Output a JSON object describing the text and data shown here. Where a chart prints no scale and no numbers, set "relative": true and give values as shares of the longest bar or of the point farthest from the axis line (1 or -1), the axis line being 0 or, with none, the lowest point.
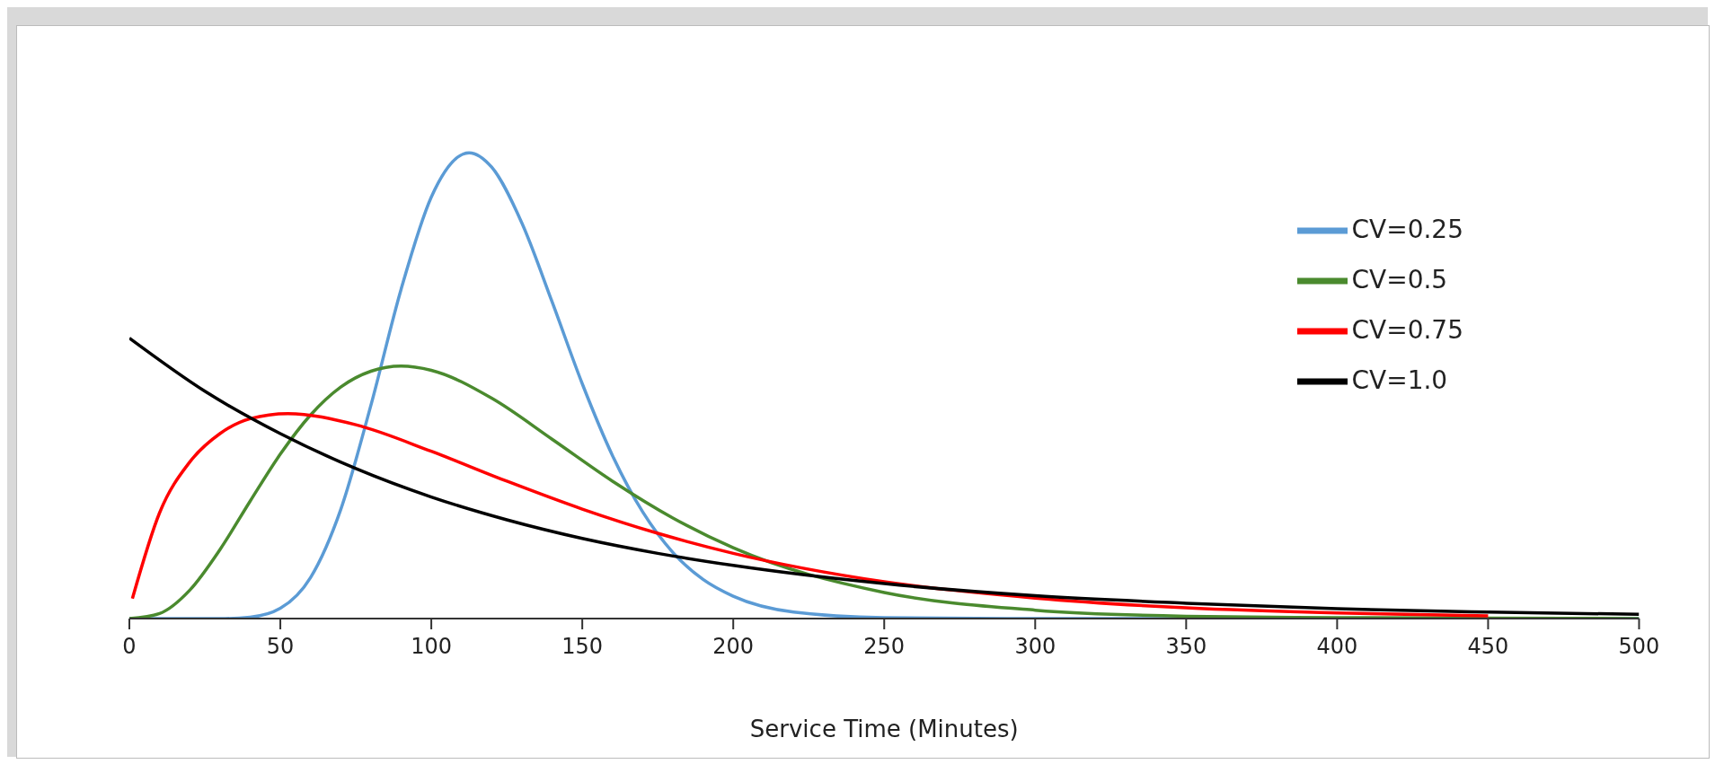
{
  "chart_data": {
    "type": "line",
    "xlabel": "Service Time (Minutes)",
    "relative": true,
    "xlim": [
      0,
      500
    ],
    "xticks": [
      0,
      50,
      100,
      150,
      200,
      250,
      300,
      350,
      400,
      450,
      500
    ],
    "grid": false,
    "legend": "top right",
    "marker": "none",
    "line_style": "solid",
    "series": [
      {
        "name": "CV=0.25",
        "color": "#5b9bd5",
        "x": [
          0,
          30,
          40,
          50,
          60,
          70,
          80,
          90,
          100,
          112.5,
          120,
          130,
          140,
          150,
          160,
          170,
          180,
          190,
          200,
          220,
          250,
          300,
          400,
          500
        ],
        "values": [
          0,
          0,
          0.003,
          0.022,
          0.088,
          0.234,
          0.458,
          0.707,
          0.905,
          1,
          0.969,
          0.849,
          0.68,
          0.504,
          0.35,
          0.229,
          0.142,
          0.084,
          0.048,
          0.014,
          0.002,
          0,
          0,
          0
        ]
      },
      {
        "name": "CV=0.5",
        "color": "#4a8a2e",
        "x": [
          0,
          10,
          20,
          30,
          40,
          50,
          60,
          70,
          80,
          90,
          100,
          120,
          140,
          160,
          180,
          200,
          250,
          300,
          350,
          400,
          450,
          500
        ],
        "values": [
          0,
          0.011,
          0.061,
          0.148,
          0.252,
          0.353,
          0.437,
          0.497,
          0.531,
          0.542,
          0.533,
          0.473,
          0.385,
          0.295,
          0.216,
          0.152,
          0.056,
          0.018,
          0.005,
          0.002,
          0.001,
          0
        ]
      },
      {
        "name": "CV=0.75",
        "color": "#ff0000",
        "x": [
          1,
          10,
          20,
          30,
          40,
          52.5,
          75,
          100,
          125,
          150,
          175,
          200,
          250,
          300,
          350,
          400,
          450
        ],
        "values": [
          0.043,
          0.227,
          0.336,
          0.397,
          0.429,
          0.44,
          0.416,
          0.359,
          0.295,
          0.235,
          0.183,
          0.14,
          0.079,
          0.044,
          0.023,
          0.012,
          0.006
        ]
      },
      {
        "name": "CV=1.0",
        "color": "#000000",
        "x": [
          0,
          25,
          50,
          75,
          100,
          125,
          150,
          175,
          200,
          250,
          300,
          350,
          400,
          450,
          500
        ],
        "values": [
          0.602,
          0.488,
          0.397,
          0.322,
          0.261,
          0.212,
          0.172,
          0.14,
          0.114,
          0.075,
          0.049,
          0.033,
          0.021,
          0.014,
          0.009
        ]
      }
    ]
  }
}
